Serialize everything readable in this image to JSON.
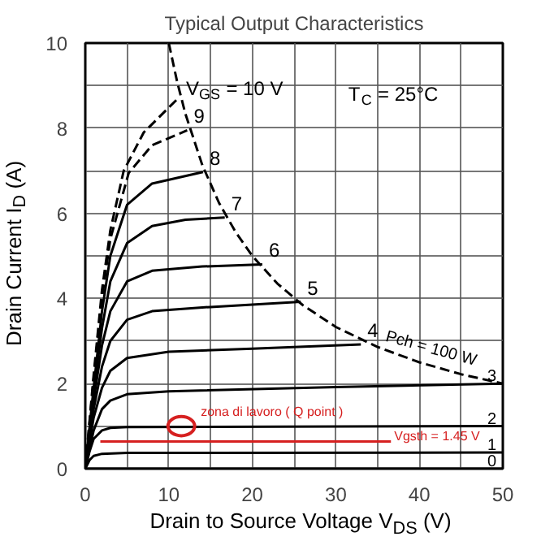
{
  "chart_data": {
    "type": "line",
    "title": "Typical Output Characteristics",
    "xlabel": "Drain to Source Voltage V$_{DS}$ (V)",
    "ylabel": "Drain Current I$_{D}$ (A)",
    "xlim": [
      0,
      50
    ],
    "ylim": [
      0,
      10
    ],
    "xticks": [
      0,
      {
        "value": 5,
        "label": null
      },
      10,
      {
        "value": 15,
        "label": null
      },
      20,
      {
        "value": 25,
        "label": null
      },
      30,
      {
        "value": 35,
        "label": null
      },
      40,
      {
        "value": 45,
        "label": null
      },
      50
    ],
    "yticks": [
      0,
      {
        "value": 1,
        "label": null
      },
      2,
      {
        "value": 3,
        "label": null
      },
      4,
      {
        "value": 5,
        "label": null
      },
      6,
      {
        "value": 7,
        "label": null
      },
      8,
      {
        "value": 9,
        "label": null
      },
      10
    ],
    "grid": true,
    "legend": false,
    "marker": "none",
    "series": [
      {
        "name": "V$_{GS}$ = 10 V",
        "color": "#000000",
        "line_style": "dashed",
        "x": [
          0,
          1,
          2,
          3,
          4.6,
          7,
          11.1
        ],
        "values": [
          0,
          2.2,
          4.2,
          5.6,
          7.0,
          7.9,
          8.7
        ]
      },
      {
        "name": "9",
        "color": "#000000",
        "line_style": "dashed",
        "x": [
          0,
          1,
          2,
          3,
          5.2,
          8,
          12.2
        ],
        "values": [
          0,
          2.1,
          4.0,
          5.4,
          6.95,
          7.6,
          7.95
        ]
      },
      {
        "name": "8",
        "color": "#000000",
        "x": [
          0,
          1,
          2,
          3,
          5,
          8,
          14.1
        ],
        "values": [
          0,
          1.9,
          3.7,
          5.0,
          6.2,
          6.7,
          6.97
        ]
      },
      {
        "name": "7",
        "color": "#000000",
        "x": [
          0,
          1,
          2,
          3,
          5,
          8,
          12,
          16.7
        ],
        "values": [
          0,
          1.8,
          3.3,
          4.4,
          5.3,
          5.7,
          5.85,
          5.9
        ]
      },
      {
        "name": "6",
        "color": "#000000",
        "x": [
          0,
          1,
          2,
          3,
          5,
          8,
          14,
          21.2
        ],
        "values": [
          0,
          1.6,
          2.9,
          3.7,
          4.4,
          4.65,
          4.75,
          4.8
        ]
      },
      {
        "name": "5",
        "color": "#000000",
        "x": [
          0,
          1,
          2,
          3,
          5,
          8,
          15,
          25.8
        ],
        "values": [
          0,
          1.4,
          2.4,
          3.0,
          3.5,
          3.7,
          3.8,
          3.92
        ]
      },
      {
        "name": "4",
        "color": "#000000",
        "x": [
          0,
          1,
          2,
          3,
          5,
          10,
          20,
          33
        ],
        "values": [
          0,
          1.2,
          1.9,
          2.3,
          2.6,
          2.75,
          2.82,
          2.92
        ]
      },
      {
        "name": "3",
        "color": "#000000",
        "x": [
          0,
          1,
          2,
          3,
          5,
          10,
          30,
          50
        ],
        "values": [
          0,
          0.9,
          1.4,
          1.6,
          1.75,
          1.82,
          1.92,
          2.0
        ]
      },
      {
        "name": "2",
        "color": "#000000",
        "x": [
          0,
          0.5,
          1,
          2,
          3,
          5,
          50
        ],
        "values": [
          0,
          0.4,
          0.7,
          0.9,
          0.96,
          0.98,
          1.0
        ]
      },
      {
        "name": "1",
        "color": "#000000",
        "x": [
          0,
          0.5,
          1,
          2,
          5,
          50
        ],
        "values": [
          0,
          0.2,
          0.3,
          0.35,
          0.37,
          0.38
        ]
      },
      {
        "name": "0",
        "color": "#000000",
        "x": [
          0,
          50
        ],
        "values": [
          0,
          0
        ]
      },
      {
        "color": "#000000",
        "line_style": "dashed",
        "x": [
          10,
          11,
          12,
          14,
          16,
          18,
          20,
          23,
          26,
          30,
          35,
          40,
          45,
          50
        ],
        "values": [
          10,
          9.09,
          8.33,
          7.14,
          6.25,
          5.56,
          5.0,
          4.35,
          3.85,
          3.33,
          2.86,
          2.5,
          2.22,
          2.0
        ]
      },
      {
        "name": "Vgsth = 1.45 V",
        "color": "#d62020",
        "x": [
          1.8,
          36.6
        ],
        "values": [
          0.64,
          0.64
        ]
      }
    ],
    "annotations": [
      "T$_{C}$ = 25°C",
      "Pch = 100 W",
      {
        "text": "zona di lavoro ( Q point )",
        "x": 11.5,
        "y": 1.0
      }
    ]
  }
}
